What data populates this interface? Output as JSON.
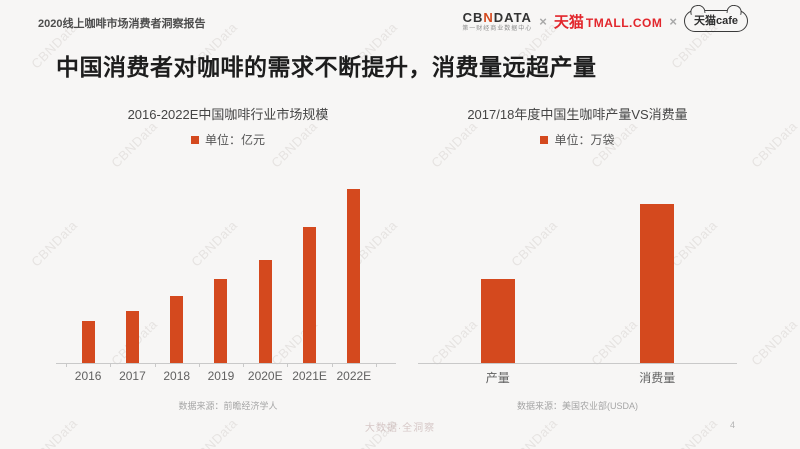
{
  "page": {
    "header": "2020线上咖啡市场消费者洞察报告",
    "title": "中国消费者对咖啡的需求不断提升，消费量远超产量",
    "footer_slogan": "大数据·全洞察",
    "page_number": "4",
    "watermark": "CBNData"
  },
  "logos": {
    "cbndata_pre": "CB",
    "cbndata_mid": "N",
    "cbndata_post": "DATA",
    "cbndata_sub": "第一财经商业数据中心",
    "separator": "×",
    "tmall_cn": "天猫",
    "tmall_en": "TMALL.COM",
    "cafe_text": "天猫cafe"
  },
  "colors": {
    "accent": "#D4491E",
    "tmall_red": "#E2262C",
    "logo_dark": "#333333"
  },
  "chart_data": [
    {
      "type": "bar",
      "title": "2016-2022E中国咖啡行业市场规模",
      "legend": [
        "单位：亿元"
      ],
      "unit": "亿元",
      "categories": [
        "2016",
        "2017",
        "2018",
        "2019",
        "2020E",
        "2021E",
        "2022E"
      ],
      "values": [
        240,
        300,
        385,
        480,
        590,
        780,
        1000
      ],
      "ylim": [
        0,
        1000
      ],
      "grid": false,
      "legend_position": "top",
      "source": "数据来源：前瞻经济学人"
    },
    {
      "type": "bar",
      "title": "2017/18年度中国生咖啡产量VS消费量",
      "legend": [
        "单位：万袋"
      ],
      "unit": "万袋",
      "categories": [
        "产量",
        "消费量"
      ],
      "values": [
        200,
        380
      ],
      "ylim": [
        0,
        380
      ],
      "grid": false,
      "legend_position": "top",
      "source": "数据来源：美国农业部(USDA)"
    }
  ]
}
